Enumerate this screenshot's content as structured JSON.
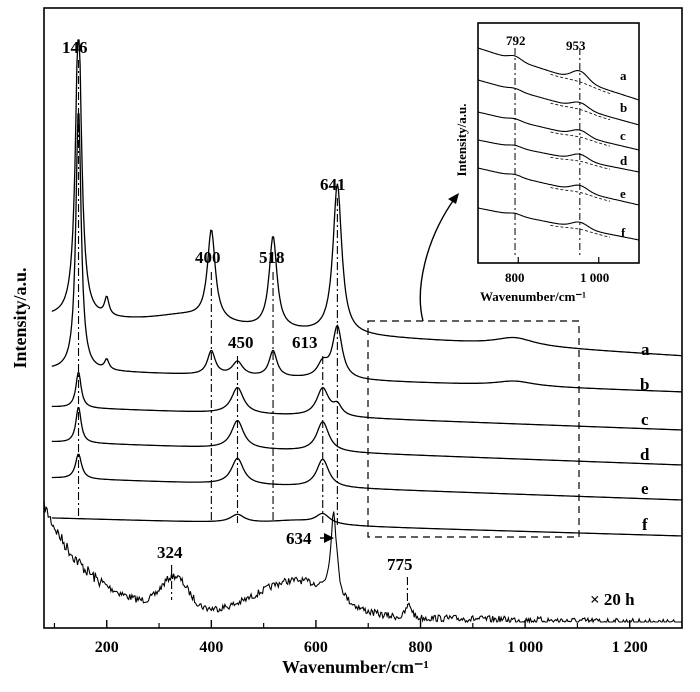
{
  "chart_data": [
    {
      "type": "line",
      "title": "",
      "xlabel": "Wavenumber/cm⁻¹",
      "ylabel": "Intensity/a.u.",
      "xlim": [
        80,
        1300
      ],
      "x_ticks": [
        200,
        400,
        600,
        800,
        1000,
        1200
      ],
      "x_tick_labels": [
        "200",
        "400",
        "600",
        "800",
        "1 000",
        "1 200"
      ],
      "grid": false,
      "series": [
        {
          "name": "a",
          "peaks": [
            146,
            400,
            518,
            641
          ]
        },
        {
          "name": "b",
          "peaks": [
            146,
            400,
            450,
            518,
            613,
            641
          ]
        },
        {
          "name": "c",
          "peaks": [
            146,
            450,
            613
          ]
        },
        {
          "name": "d",
          "peaks": [
            146,
            450,
            613
          ]
        },
        {
          "name": "e",
          "peaks": [
            146,
            450,
            613
          ]
        },
        {
          "name": "f",
          "peaks": [
            450,
            613
          ]
        },
        {
          "name": "× 20 h",
          "peaks": [
            324,
            634,
            775
          ]
        }
      ],
      "annotations": [
        "146",
        "400",
        "518",
        "641",
        "450",
        "613",
        "634",
        "324",
        "775"
      ]
    },
    {
      "type": "line",
      "title": "",
      "xlabel": "Wavenumber/cm⁻¹",
      "ylabel": "Intensity/a.u.",
      "xlim": [
        700,
        1100
      ],
      "x_ticks": [
        800,
        1000
      ],
      "x_tick_labels": [
        "800",
        "1 000"
      ],
      "series_names": [
        "a",
        "b",
        "c",
        "d",
        "e",
        "f"
      ],
      "annotations": [
        "792",
        "953"
      ]
    }
  ]
}
